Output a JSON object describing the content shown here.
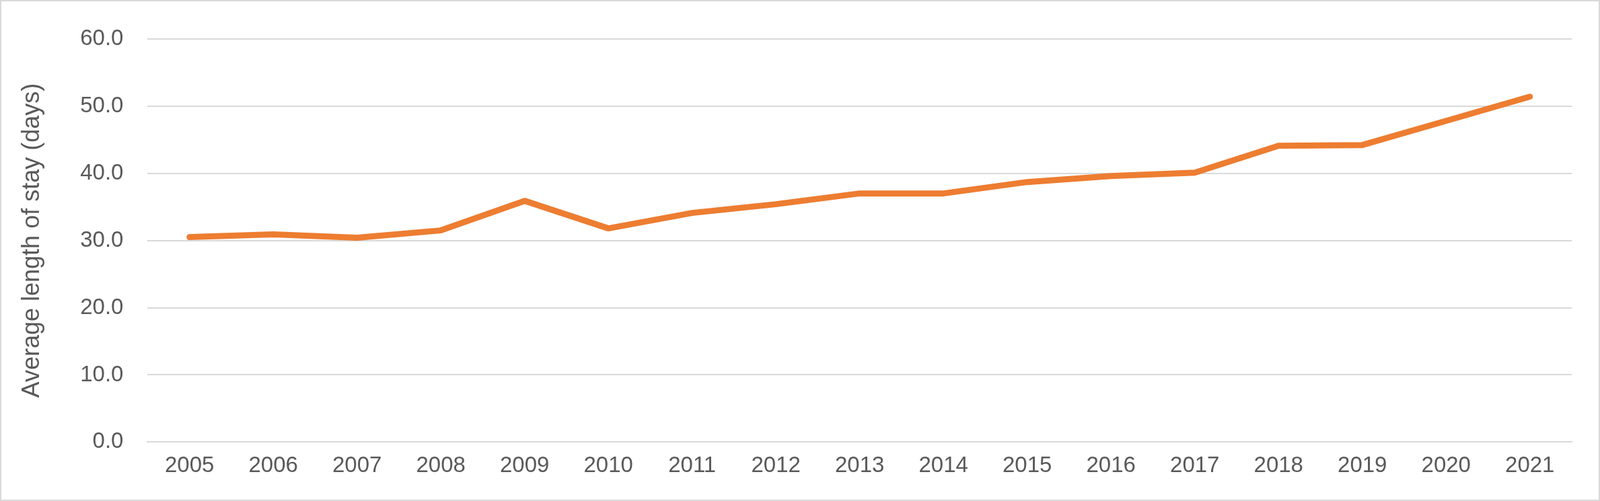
{
  "chart_data": {
    "type": "line",
    "y_label": "Average length of stay (days)",
    "categories": [
      "2005",
      "2006",
      "2007",
      "2008",
      "2009",
      "2010",
      "2011",
      "2012",
      "2013",
      "2014",
      "2015",
      "2016",
      "2017",
      "2018",
      "2019",
      "2020",
      "2021"
    ],
    "values": [
      30.5,
      30.9,
      30.4,
      31.5,
      35.9,
      31.8,
      34.1,
      35.4,
      37.0,
      37.0,
      38.7,
      39.6,
      40.1,
      44.1,
      44.2,
      47.8,
      51.4
    ],
    "color": "#ed7d31",
    "marker": "none",
    "ylim": [
      0,
      60
    ],
    "yticks": [
      {
        "value": 0,
        "label": "0.0"
      },
      {
        "value": 10,
        "label": "10.0"
      },
      {
        "value": 20,
        "label": "20.0"
      },
      {
        "value": 30,
        "label": "30.0"
      },
      {
        "value": 40,
        "label": "40.0"
      },
      {
        "value": 50,
        "label": "50.0"
      },
      {
        "value": 60,
        "label": "60.0"
      }
    ],
    "grid": true
  }
}
